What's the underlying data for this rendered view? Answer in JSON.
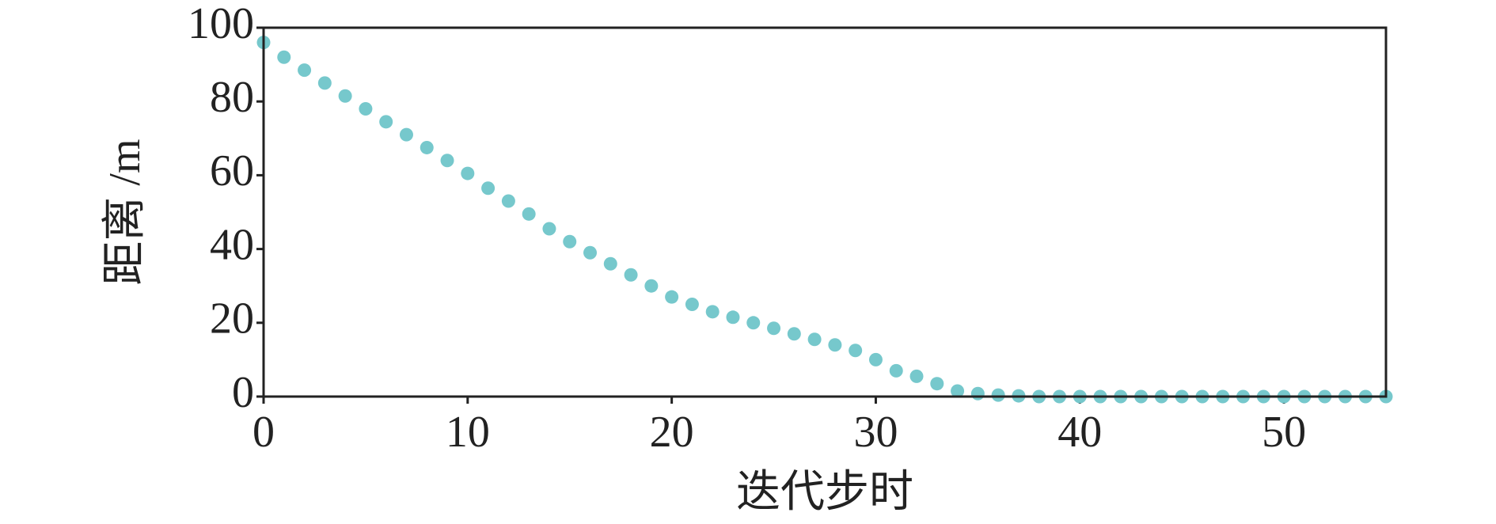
{
  "chart_data": {
    "type": "scatter",
    "x_label": "迭代步时",
    "y_label": "距离 /m",
    "color": "#76c8cc",
    "x": [
      0,
      1,
      2,
      3,
      4,
      5,
      6,
      7,
      8,
      9,
      10,
      11,
      12,
      13,
      14,
      15,
      16,
      17,
      18,
      19,
      20,
      21,
      22,
      23,
      24,
      25,
      26,
      27,
      28,
      29,
      30,
      31,
      32,
      33,
      34,
      35,
      36,
      37,
      38,
      39,
      40,
      41,
      42,
      43,
      44,
      45,
      46,
      47,
      48,
      49,
      50,
      51,
      52,
      53,
      54,
      55
    ],
    "values": [
      96,
      92,
      88.5,
      85,
      81.5,
      78,
      74.5,
      71,
      67.5,
      64,
      60.5,
      56.5,
      53,
      49.5,
      45.5,
      42,
      39,
      36,
      33,
      30,
      27,
      25,
      23,
      21.5,
      20,
      18.5,
      17,
      15.5,
      14,
      12.5,
      10,
      7,
      5.5,
      3.5,
      1.5,
      0.8,
      0.4,
      0.2,
      0,
      0,
      0,
      0,
      0,
      0,
      0,
      0,
      0,
      0,
      0,
      0,
      0,
      0,
      0,
      0,
      0,
      0
    ],
    "xlim": [
      0,
      55
    ],
    "ylim": [
      0,
      100
    ],
    "xticks": [
      0,
      10,
      20,
      30,
      40,
      50
    ],
    "yticks": [
      0,
      20,
      40,
      60,
      80,
      100
    ]
  }
}
